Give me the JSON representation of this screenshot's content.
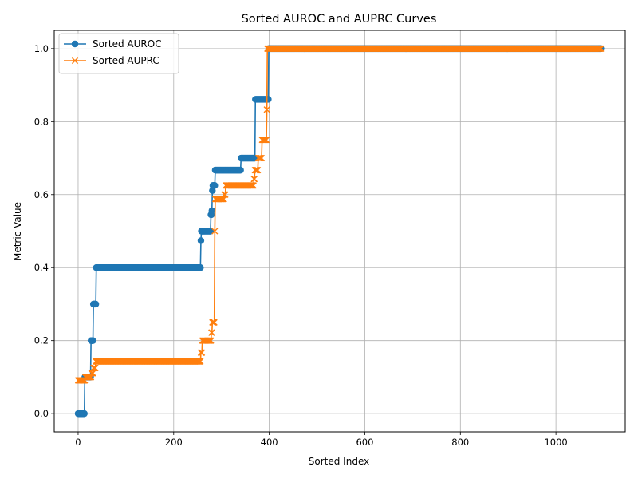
{
  "chart_data": {
    "type": "line",
    "title": "Sorted AUROC and AUPRC Curves",
    "xlabel": "Sorted Index",
    "ylabel": "Metric Value",
    "xlim": [
      -50,
      1145
    ],
    "ylim": [
      -0.05,
      1.05
    ],
    "xticks": [
      0,
      200,
      400,
      600,
      800,
      1000
    ],
    "yticks": [
      0.0,
      0.2,
      0.4,
      0.6,
      0.8,
      1.0
    ],
    "xtick_labels": [
      "0",
      "200",
      "400",
      "600",
      "800",
      "1000"
    ],
    "ytick_labels": [
      "0.0",
      "0.2",
      "0.4",
      "0.6",
      "0.8",
      "1.0"
    ],
    "grid": true,
    "legend_position": "top-left",
    "n_points": 1095,
    "series": [
      {
        "name": "Sorted AUROC",
        "color": "#1f77b4",
        "marker": "circle",
        "steps": [
          {
            "from": 0,
            "to": 13,
            "value": 0.0
          },
          {
            "from": 14,
            "to": 26,
            "value": 0.1
          },
          {
            "from": 27,
            "to": 31,
            "value": 0.2
          },
          {
            "from": 32,
            "to": 37,
            "value": 0.3
          },
          {
            "from": 38,
            "to": 256,
            "value": 0.4
          },
          {
            "from": 257,
            "to": 257,
            "value": 0.474
          },
          {
            "from": 258,
            "to": 277,
            "value": 0.5
          },
          {
            "from": 278,
            "to": 279,
            "value": 0.545
          },
          {
            "from": 280,
            "to": 280,
            "value": 0.556
          },
          {
            "from": 281,
            "to": 281,
            "value": 0.611
          },
          {
            "from": 282,
            "to": 286,
            "value": 0.625
          },
          {
            "from": 287,
            "to": 340,
            "value": 0.667
          },
          {
            "from": 341,
            "to": 370,
            "value": 0.7
          },
          {
            "from": 371,
            "to": 398,
            "value": 0.861
          },
          {
            "from": 399,
            "to": 1094,
            "value": 1.0
          }
        ]
      },
      {
        "name": "Sorted AUPRC",
        "color": "#ff7f0e",
        "marker": "x",
        "steps": [
          {
            "from": 0,
            "to": 14,
            "value": 0.091
          },
          {
            "from": 15,
            "to": 27,
            "value": 0.1
          },
          {
            "from": 28,
            "to": 31,
            "value": 0.111
          },
          {
            "from": 32,
            "to": 36,
            "value": 0.125
          },
          {
            "from": 37,
            "to": 256,
            "value": 0.143
          },
          {
            "from": 257,
            "to": 259,
            "value": 0.167
          },
          {
            "from": 260,
            "to": 278,
            "value": 0.2
          },
          {
            "from": 279,
            "to": 280,
            "value": 0.222
          },
          {
            "from": 281,
            "to": 285,
            "value": 0.25
          },
          {
            "from": 286,
            "to": 286,
            "value": 0.5
          },
          {
            "from": 287,
            "to": 305,
            "value": 0.588
          },
          {
            "from": 306,
            "to": 308,
            "value": 0.6
          },
          {
            "from": 309,
            "to": 367,
            "value": 0.625
          },
          {
            "from": 368,
            "to": 369,
            "value": 0.643
          },
          {
            "from": 370,
            "to": 376,
            "value": 0.667
          },
          {
            "from": 377,
            "to": 384,
            "value": 0.7
          },
          {
            "from": 385,
            "to": 394,
            "value": 0.75
          },
          {
            "from": 395,
            "to": 395,
            "value": 0.833
          },
          {
            "from": 396,
            "to": 1094,
            "value": 1.0
          }
        ]
      }
    ]
  }
}
